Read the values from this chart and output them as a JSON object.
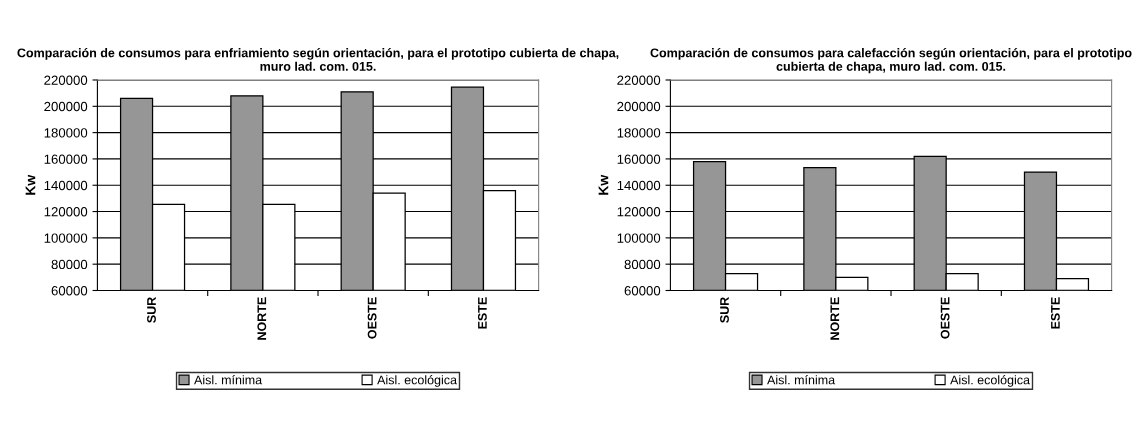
{
  "chart_data": [
    {
      "type": "bar",
      "title": "Comparación de consumos para enfriamiento según orientación, para el prototipo cubierta de chapa, muro lad. com. 015.",
      "ylabel": "Kw",
      "categories": [
        "SUR",
        "NORTE",
        "OESTE",
        "ESTE"
      ],
      "series": [
        {
          "name": "Aisl. mínima",
          "color": "#969696",
          "values": [
            206000,
            208000,
            211000,
            214500
          ]
        },
        {
          "name": "Aisl. ecológica",
          "color": "#ffffff",
          "values": [
            125500,
            125500,
            134000,
            136000
          ]
        }
      ],
      "ylim": [
        60000,
        220000
      ],
      "yticks": [
        60000,
        80000,
        100000,
        120000,
        140000,
        160000,
        180000,
        200000,
        220000
      ],
      "grid": "y",
      "legend": "bottom"
    },
    {
      "type": "bar",
      "title": "Comparación de consumos para calefacción según orientación, para el prototipo cubierta de chapa, muro lad. com. 015.",
      "ylabel": "Kw",
      "categories": [
        "SUR",
        "NORTE",
        "OESTE",
        "ESTE"
      ],
      "series": [
        {
          "name": "Aisl. mínima",
          "color": "#969696",
          "values": [
            158000,
            153300,
            162000,
            150000
          ]
        },
        {
          "name": "Aisl. ecológica",
          "color": "#ffffff",
          "values": [
            72800,
            70000,
            72800,
            69000
          ]
        }
      ],
      "ylim": [
        60000,
        220000
      ],
      "yticks": [
        60000,
        80000,
        100000,
        120000,
        140000,
        160000,
        180000,
        200000,
        220000
      ],
      "grid": "y",
      "legend": "bottom"
    }
  ]
}
